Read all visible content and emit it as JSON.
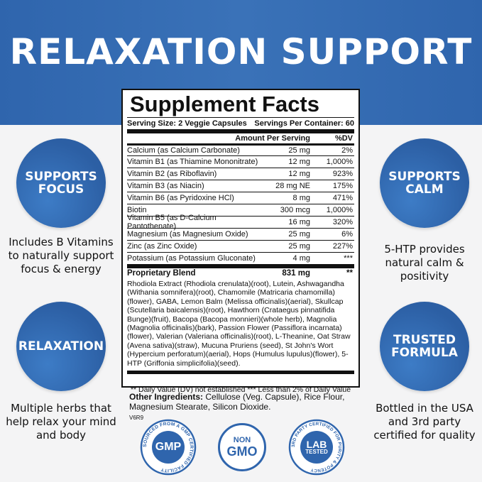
{
  "title": "RELAXATION SUPPORT",
  "left": [
    {
      "badge": "SUPPORTS FOCUS",
      "text": "Includes B Vitamins to naturally support focus & energy"
    },
    {
      "badge": "RELAXATION",
      "text": "Multiple herbs that help relax your mind and body"
    }
  ],
  "right": [
    {
      "badge": "SUPPORTS CALM",
      "text": "5-HTP provides natural calm & positivity"
    },
    {
      "badge": "TRUSTED FORMULA",
      "text": "Bottled in the USA and 3rd party certified for quality"
    }
  ],
  "facts": {
    "heading": "Supplement Facts",
    "serving_size": "Serving Size: 2 Veggie Capsules",
    "servings_per": "Servings Per Container: 60",
    "col_amount": "Amount Per Serving",
    "col_dv": "%DV",
    "rows": [
      {
        "name": "Calcium (as Calcium Carbonate)",
        "amount": "25 mg",
        "dv": "2%"
      },
      {
        "name": "Vitamin B1 (as Thiamine Mononitrate)",
        "amount": "12 mg",
        "dv": "1,000%"
      },
      {
        "name": "Vitamin B2 (as Riboflavin)",
        "amount": "12 mg",
        "dv": "923%"
      },
      {
        "name": "Vitamin B3 (as Niacin)",
        "amount": "28 mg NE",
        "dv": "175%"
      },
      {
        "name": "Vitamin B6 (as Pyridoxine HCl)",
        "amount": "8 mg",
        "dv": "471%"
      },
      {
        "name": "Biotin",
        "amount": "300 mcg",
        "dv": "1,000%"
      },
      {
        "name": "Vitamin B5 (as D-Calcium Pantothenate)",
        "amount": "16 mg",
        "dv": "320%"
      },
      {
        "name": "Magnesium (as Magnesium Oxide)",
        "amount": "25 mg",
        "dv": "6%"
      },
      {
        "name": "Zinc (as Zinc Oxide)",
        "amount": "25 mg",
        "dv": "227%"
      },
      {
        "name": "Potassium (as Potassium Gluconate)",
        "amount": "4 mg",
        "dv": "***"
      }
    ],
    "blend_name": "Proprietary Blend",
    "blend_amount": "831 mg",
    "blend_dv": "**",
    "blend_text": "Rhodiola Extract (Rhodiola crenulata)(root), Lutein, Ashwagandha (Withania somnifera)(root), Chamomile (Matricaria chamomilla)(flower), GABA, Lemon Balm (Melissa officinalis)(aerial), Skullcap (Scutellaria baicalensis)(root), Hawthorn (Crataegus pinnatifida Bunge)(fruit), Bacopa (Bacopa monnieri)(whole herb), Magnolia (Magnolia officinalis)(bark), Passion Flower (Passiflora incarnata)(flower), Valerian (Valeriana officinalis)(root), L-Theanine, Oat Straw (Avena sativa)(straw), Mucuna Pruriens (seed), St John's Wort (Hypercium perforatum)(aerial), Hops (Humulus lupulus)(flower), 5-HTP (Griffonia simplicifolia)(seed).",
    "footnote": "** Daily Value (DV) not established *** Less than 2% of Daily Value"
  },
  "other": {
    "label": "Other Ingredients:",
    "text": " Cellulose (Veg. Capsule), Rice Flour, Magnesium Stearate, Silicon Dioxide.",
    "code": "V6R9"
  },
  "badges": {
    "gmp": "GMP",
    "gmp_ring": "SOURCED FROM A GMP CERTIFIED FACILITY",
    "nongmo_top": "NON",
    "nongmo_bottom": "GMO",
    "lab_top": "LAB",
    "lab_bottom": "TESTED",
    "lab_ring": "3RD PARTY CERTIFIED FOR PURITY & POTENCY"
  },
  "colors": {
    "brand_blue": "#2f65ad"
  }
}
